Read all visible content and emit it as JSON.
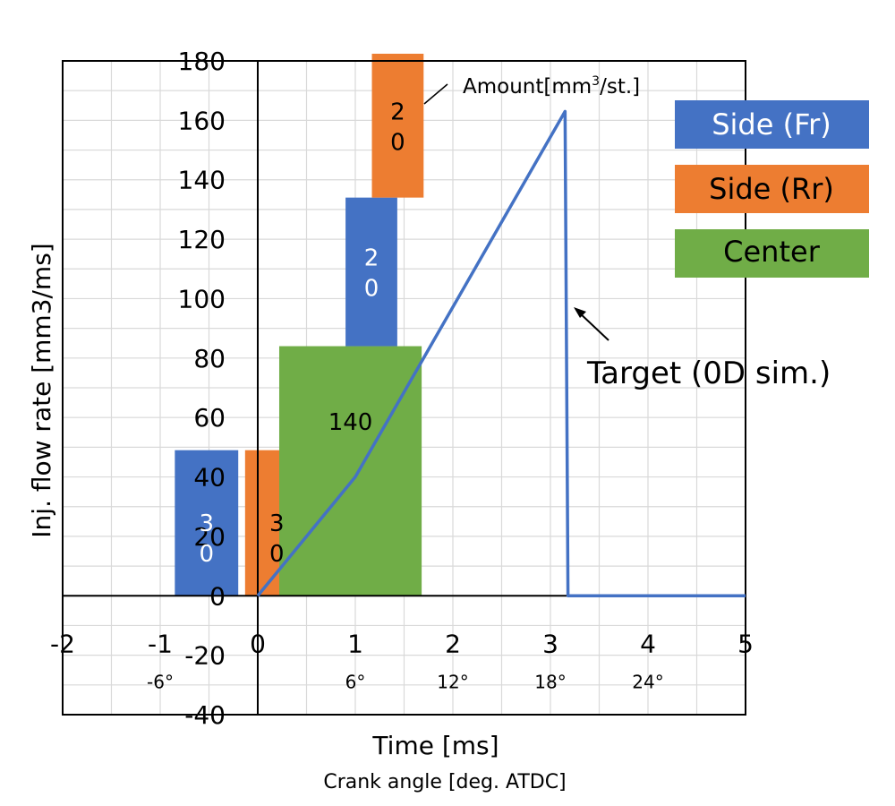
{
  "chart_data": {
    "type": "bar",
    "ylabel": "Inj. flow rate [mm3/ms]",
    "xlabel": "Time [ms]",
    "xlabel2": "Crank angle [deg. ATDC]",
    "xlim": [
      -2,
      5
    ],
    "ylim": [
      -40,
      180
    ],
    "x_ticks": [
      "-2",
      "-1",
      "0",
      "1",
      "2",
      "3",
      "4",
      "5"
    ],
    "y_ticks": [
      "-40",
      "-20",
      "0",
      "20",
      "40",
      "60",
      "80",
      "100",
      "120",
      "140",
      "160",
      "180"
    ],
    "crank_angle_ticks": [
      {
        "x": -1,
        "label": "-6°"
      },
      {
        "x": 1,
        "label": "6°"
      },
      {
        "x": 2,
        "label": "12°"
      },
      {
        "x": 3,
        "label": "18°"
      },
      {
        "x": 4,
        "label": "24°"
      }
    ],
    "grid": true,
    "bars": [
      {
        "series": "Side (Fr)",
        "x_start": -0.85,
        "x_end": -0.2,
        "y_bottom": 0,
        "y_top": 49,
        "label": [
          "3",
          "0"
        ],
        "color": "#4472c4",
        "text_color": "#ffffff"
      },
      {
        "series": "Side (Rr)",
        "x_start": -0.13,
        "x_end": 0.52,
        "y_bottom": 0,
        "y_top": 49,
        "label": [
          "3",
          "0"
        ],
        "color": "#ed7d31",
        "text_color": "#000000"
      },
      {
        "series": "Center",
        "x_start": 0.22,
        "x_end": 1.68,
        "y_bottom": 0,
        "y_top": 84,
        "label": [
          "140"
        ],
        "color": "#70ad47",
        "text_color": "#000000"
      },
      {
        "series": "Side (Fr)",
        "x_start": 0.9,
        "x_end": 1.43,
        "y_bottom": 84,
        "y_top": 134,
        "label": [
          "2",
          "0"
        ],
        "color": "#4472c4",
        "text_color": "#ffffff"
      },
      {
        "series": "Side (Rr)",
        "x_start": 1.17,
        "x_end": 1.7,
        "y_bottom": 134,
        "y_top": 183,
        "label": [
          "2",
          "0"
        ],
        "color": "#ed7d31",
        "text_color": "#000000"
      }
    ],
    "line": {
      "name": "Target (0D sim.)",
      "color": "#4472c4",
      "x": [
        0,
        1.0,
        1.7,
        3.15,
        3.18,
        5
      ],
      "y": [
        0,
        40,
        80,
        163,
        0,
        0
      ]
    },
    "legend": [
      {
        "label": "Side (Fr)",
        "color": "#4472c4",
        "text_color": "#ffffff"
      },
      {
        "label": "Side (Rr)",
        "color": "#ed7d31",
        "text_color": "#000000"
      },
      {
        "label": "Center",
        "color": "#70ad47",
        "text_color": "#000000"
      }
    ],
    "legend_placement": "right",
    "annotations": {
      "amount": {
        "prefix": "Amount[mm",
        "sup": "3",
        "suffix": "/st.]"
      },
      "target": "Target (0D sim.)"
    }
  }
}
